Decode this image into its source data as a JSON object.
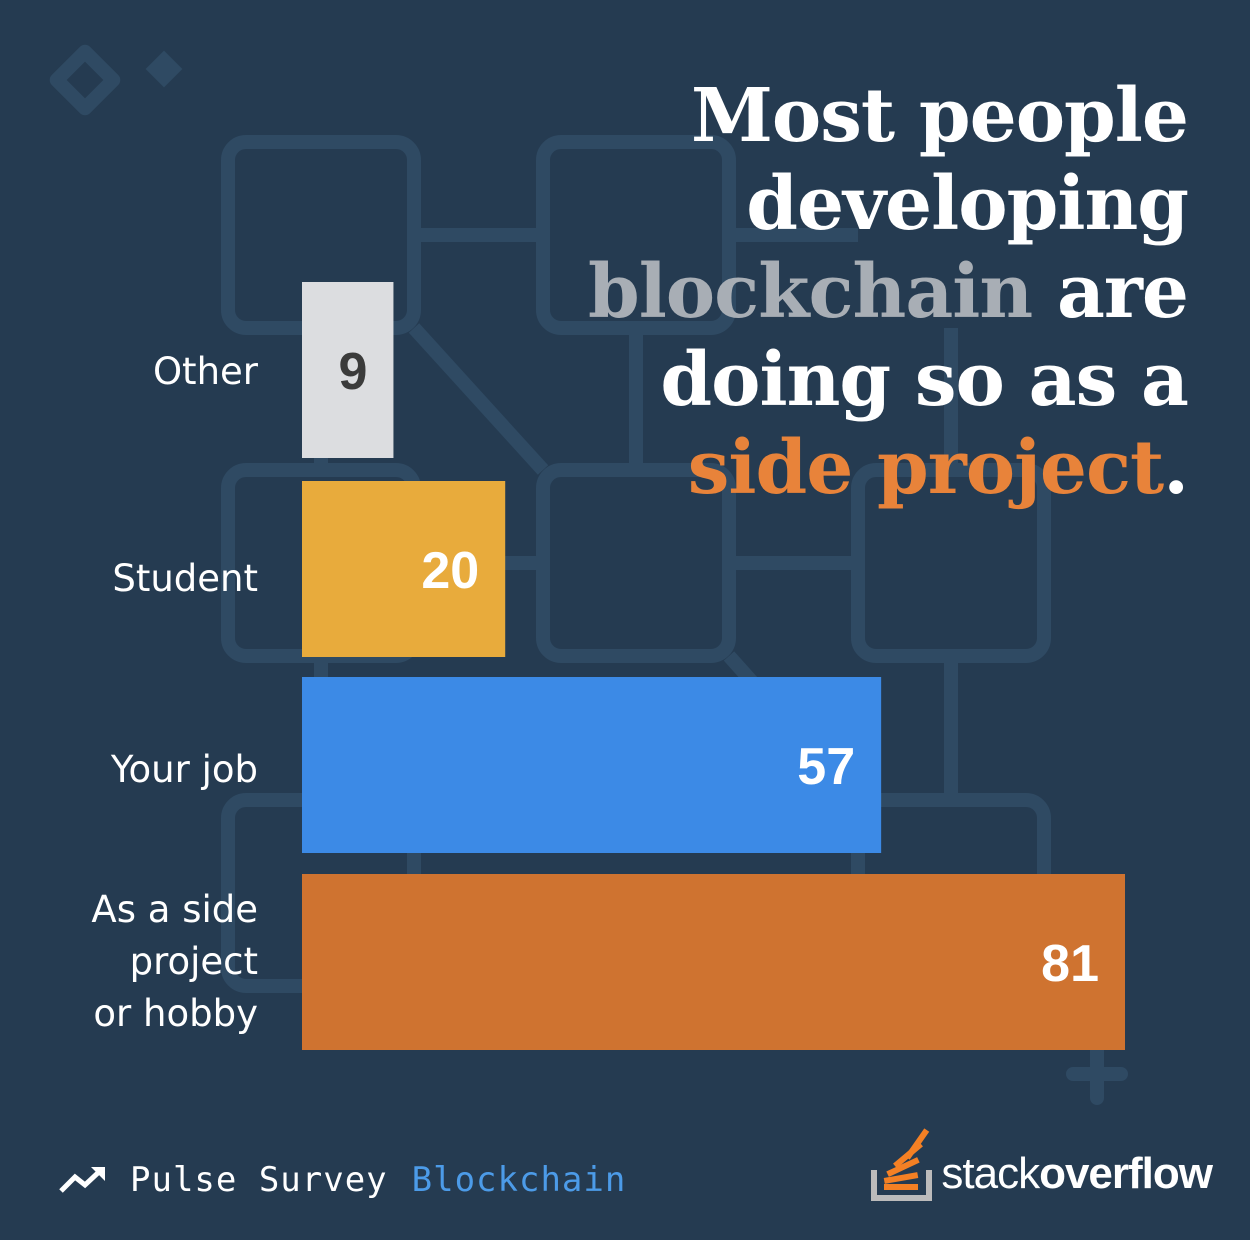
{
  "headline": {
    "line1": "Most people",
    "line2": "developing",
    "line3_highlight": "blockchain",
    "line3_rest": " are",
    "line4": "doing so as a",
    "line5_highlight": "side project",
    "line5_end": "."
  },
  "colors": {
    "background": "#253b51",
    "other": "#dcdde0",
    "student": "#e8ab3c",
    "your_job": "#3c8ae6",
    "side_project": "#cf7330",
    "highlight_gray": "#a8aeb5",
    "highlight_orange": "#e8833a",
    "accent_blue": "#4c9be8"
  },
  "chart_data": {
    "type": "bar",
    "orientation": "horizontal",
    "categories": [
      "Other",
      "Student",
      "Your job",
      "As a side project or hobby"
    ],
    "values": [
      9,
      20,
      57,
      81
    ],
    "colors": [
      "#dcdde0",
      "#e8ab3c",
      "#3c8ae6",
      "#cf7330"
    ],
    "value_label_colors": [
      "#3b3b3b",
      "#ffffff",
      "#ffffff",
      "#ffffff"
    ],
    "title": "Most people developing blockchain are doing so as a side project.",
    "xlabel": "",
    "ylabel": "",
    "xlim": [
      0,
      81
    ],
    "grid": false
  },
  "labels": {
    "other": "Other",
    "student": "Student",
    "your_job": "Your job",
    "side_project_lines": [
      "As a side",
      "project",
      "or hobby"
    ]
  },
  "footer": {
    "icon": "trend-up-icon",
    "pulse": "Pulse Survey",
    "topic": "Blockchain",
    "logo_icon": "stackoverflow-logo-icon",
    "logo_stack": "stack",
    "logo_overflow": "overflow"
  }
}
